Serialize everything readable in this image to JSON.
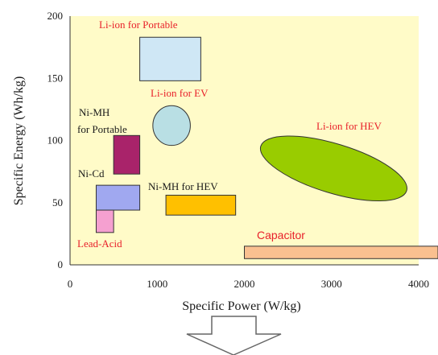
{
  "chart_data": {
    "type": "scatter",
    "xlabel": "Specific Power (W/kg)",
    "ylabel": "Specific Energy (Wh/kg)",
    "xlim": [
      0,
      4000
    ],
    "ylim": [
      0,
      200
    ],
    "x_ticks": [
      "0",
      "1000",
      "2000",
      "3000",
      "4000"
    ],
    "y_ticks": [
      "0",
      "50",
      "100",
      "150",
      "200"
    ],
    "background_color": "#fffbc8",
    "grid": false,
    "regions": [
      {
        "label": "Li-ion for Portable",
        "shape": "rect",
        "x_range": [
          800,
          1500
        ],
        "y_range": [
          148,
          183
        ],
        "color": "#cfe7f5",
        "label_color": "#e8202a"
      },
      {
        "label": "Li-ion for EV",
        "shape": "ellipse",
        "x_range": [
          950,
          1380
        ],
        "y_range": [
          96,
          128
        ],
        "color": "#b9dfe4",
        "label_color": "#e8202a"
      },
      {
        "label": "Ni-MH for Portable",
        "shape": "rect",
        "x_range": [
          500,
          800
        ],
        "y_range": [
          73,
          104
        ],
        "color": "#a9236a",
        "label_color": "#1a1a1a"
      },
      {
        "label": "Ni-Cd",
        "shape": "rect",
        "x_range": [
          300,
          800
        ],
        "y_range": [
          44,
          64
        ],
        "color": "#a0a8f0",
        "label_color": "#1a1a1a"
      },
      {
        "label": "Lead-Acid",
        "shape": "rect",
        "x_range": [
          300,
          500
        ],
        "y_range": [
          26,
          44
        ],
        "color": "#f5a0d0",
        "label_color": "#e8202a"
      },
      {
        "label": "Ni-MH for HEV",
        "shape": "rect",
        "x_range": [
          1100,
          1900
        ],
        "y_range": [
          40,
          56
        ],
        "color": "#ffc000",
        "label_color": "#1a1a1a"
      },
      {
        "label": "Li-ion for HEV",
        "shape": "ellipse",
        "x_range": [
          2150,
          3900
        ],
        "y_range": [
          50,
          105
        ],
        "color": "#99cc00",
        "label_color": "#e8202a"
      },
      {
        "label": "Capacitor",
        "shape": "rect",
        "x_range": [
          2000,
          4400
        ],
        "y_range": [
          5,
          15
        ],
        "color": "#fac090",
        "label_color": "#e8202a"
      }
    ]
  }
}
